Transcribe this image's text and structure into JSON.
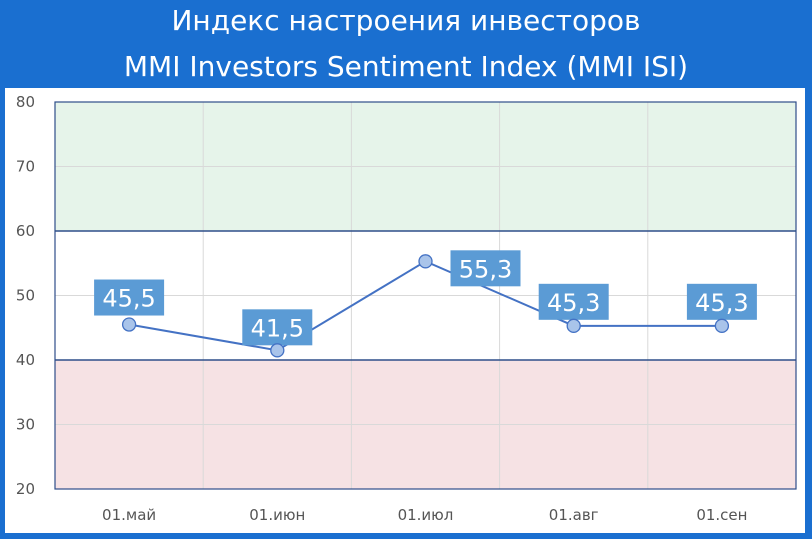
{
  "title_ru": "Индекс настроения инвесторов",
  "title_en": "MMI Investors Sentiment Index (MMI ISI)",
  "colors": {
    "frame": "#1a6fd0",
    "line": "#4472c4",
    "marker_fill": "#a9c4ea",
    "label_bg": "#5b9bd5",
    "green_zone": "#e6f4ea",
    "red_zone": "#f6e2e4"
  },
  "chart_data": {
    "type": "line",
    "categories": [
      "01.май",
      "01.июн",
      "01.июл",
      "01.авг",
      "01.сен"
    ],
    "values": [
      45.5,
      41.5,
      55.3,
      45.3,
      45.3
    ],
    "value_labels": [
      "45,5",
      "41,5",
      "55,3",
      "45,3",
      "45,3"
    ],
    "ylim": [
      20,
      80
    ],
    "yticks": [
      "80",
      "70",
      "60",
      "50",
      "40",
      "30",
      "20"
    ],
    "bands": [
      {
        "from": 60,
        "to": 80,
        "zone": "positive"
      },
      {
        "from": 20,
        "to": 40,
        "zone": "negative"
      }
    ],
    "grid": true,
    "xlabel": "",
    "ylabel": ""
  }
}
